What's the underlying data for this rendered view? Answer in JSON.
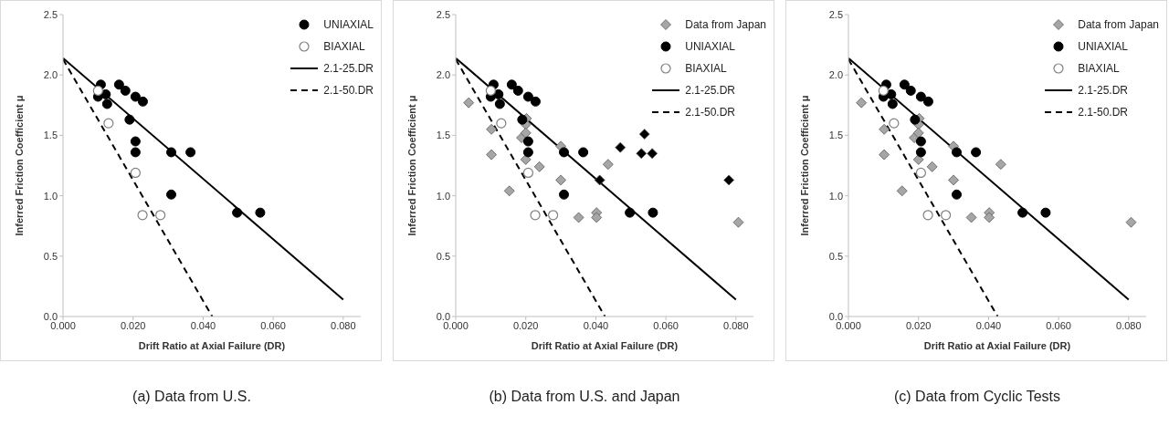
{
  "chart_data": [
    {
      "type": "scatter",
      "title": "(a) Data from U.S.",
      "xlabel": "Drift Ratio at Axial Failure (DR)",
      "ylabel": "Inferred Friction Coefficient μ",
      "xlim": [
        0,
        0.085
      ],
      "xticks": [
        {
          "value": 0,
          "label": "0.000"
        },
        {
          "value": 0.02,
          "label": "0.020"
        },
        {
          "value": 0.04,
          "label": "0.040"
        },
        {
          "value": 0.06,
          "label": "0.060"
        },
        {
          "value": 0.08,
          "label": "0.080"
        }
      ],
      "ylim": [
        0,
        2.5
      ],
      "yticks": [
        {
          "value": 0,
          "label": "0.0"
        },
        {
          "value": 0.5,
          "label": "0.5"
        },
        {
          "value": 1,
          "label": "1.0"
        },
        {
          "value": 1.5,
          "label": "1.5"
        },
        {
          "value": 2,
          "label": "2.0"
        },
        {
          "value": 2.5,
          "label": "2.5"
        }
      ],
      "grid": false,
      "legend": "top right",
      "series": [
        {
          "name": "UNIAXIAL",
          "color": "#000000",
          "marker": "circle",
          "x": [
            0.0108,
            0.01,
            0.0122,
            0.0126,
            0.016,
            0.0178,
            0.0207,
            0.0228,
            0.019,
            0.0207,
            0.0207,
            0.0309,
            0.0364,
            0.0309,
            0.0497,
            0.0563
          ],
          "values": [
            1.92,
            1.82,
            1.84,
            1.76,
            1.92,
            1.87,
            1.82,
            1.78,
            1.63,
            1.45,
            1.36,
            1.36,
            1.36,
            1.01,
            0.86,
            0.86
          ]
        },
        {
          "name": "BIAXIAL",
          "color": "#ffffff",
          "marker": "circle",
          "x": [
            0.01,
            0.013,
            0.0207,
            0.0227,
            0.0278
          ],
          "values": [
            1.87,
            1.6,
            1.19,
            0.84,
            0.84
          ]
        },
        {
          "name": "2.1-25.DR",
          "type": "line",
          "color": "#000000",
          "line_style": "solid",
          "x": [
            0,
            0.08
          ],
          "values": [
            2.14,
            0.14
          ]
        },
        {
          "name": "2.1-50.DR",
          "type": "line",
          "color": "#000000",
          "line_style": "dashed",
          "x": [
            0,
            0.0426
          ],
          "values": [
            2.13,
            0
          ]
        }
      ]
    },
    {
      "type": "scatter",
      "title": "(b) Data from U.S. and Japan",
      "xlabel": "Drift Ratio at Axial Failure (DR)",
      "ylabel": "Inferred Friction Coefficient μ",
      "xlim": [
        0,
        0.085
      ],
      "xticks": [
        {
          "value": 0,
          "label": "0.000"
        },
        {
          "value": 0.02,
          "label": "0.020"
        },
        {
          "value": 0.04,
          "label": "0.040"
        },
        {
          "value": 0.06,
          "label": "0.060"
        },
        {
          "value": 0.08,
          "label": "0.080"
        }
      ],
      "ylim": [
        0,
        2.5
      ],
      "yticks": [
        {
          "value": 0,
          "label": "0.0"
        },
        {
          "value": 0.5,
          "label": "0.5"
        },
        {
          "value": 1,
          "label": "1.0"
        },
        {
          "value": 1.5,
          "label": "1.5"
        },
        {
          "value": 2,
          "label": "2.0"
        },
        {
          "value": 2.5,
          "label": "2.5"
        }
      ],
      "grid": false,
      "legend": "top right",
      "series": [
        {
          "name": "Data from Japan",
          "color": "#a6a6a6",
          "marker": "diamond",
          "x": [
            0.0037,
            0.0102,
            0.0102,
            0.0153,
            0.0188,
            0.0202,
            0.02,
            0.02,
            0.02,
            0.0239,
            0.03,
            0.03,
            0.0351,
            0.0402,
            0.0402,
            0.0435,
            0.0807
          ],
          "values": [
            1.77,
            1.55,
            1.34,
            1.04,
            1.48,
            1.64,
            1.59,
            1.52,
            1.3,
            1.24,
            1.41,
            1.13,
            0.82,
            0.86,
            0.82,
            1.26,
            0.78
          ]
        },
        {
          "color": "#000000",
          "marker": "diamond",
          "x": [
            0.0411,
            0.047,
            0.053,
            0.0539,
            0.0561,
            0.078
          ],
          "values": [
            1.13,
            1.4,
            1.35,
            1.51,
            1.35,
            1.13
          ]
        },
        {
          "name": "UNIAXIAL",
          "color": "#000000",
          "marker": "circle",
          "x": [
            0.0108,
            0.01,
            0.0122,
            0.0126,
            0.016,
            0.0178,
            0.0207,
            0.0228,
            0.019,
            0.0207,
            0.0207,
            0.0309,
            0.0364,
            0.0309,
            0.0497,
            0.0563
          ],
          "values": [
            1.92,
            1.82,
            1.84,
            1.76,
            1.92,
            1.87,
            1.82,
            1.78,
            1.63,
            1.45,
            1.36,
            1.36,
            1.36,
            1.01,
            0.86,
            0.86
          ]
        },
        {
          "name": "BIAXIAL",
          "color": "#ffffff",
          "marker": "circle",
          "x": [
            0.01,
            0.013,
            0.0207,
            0.0227,
            0.0278
          ],
          "values": [
            1.87,
            1.6,
            1.19,
            0.84,
            0.84
          ]
        },
        {
          "name": "2.1-25.DR",
          "type": "line",
          "color": "#000000",
          "line_style": "solid",
          "x": [
            0,
            0.08
          ],
          "values": [
            2.14,
            0.14
          ]
        },
        {
          "name": "2.1-50.DR",
          "type": "line",
          "color": "#000000",
          "line_style": "dashed",
          "x": [
            0,
            0.0426
          ],
          "values": [
            2.13,
            0
          ]
        }
      ]
    },
    {
      "type": "scatter",
      "title": "(c) Data from Cyclic Tests",
      "xlabel": "Drift Ratio at Axial Failure (DR)",
      "ylabel": "Inferred Friction Coefficient μ",
      "xlim": [
        0,
        0.085
      ],
      "xticks": [
        {
          "value": 0,
          "label": "0.000"
        },
        {
          "value": 0.02,
          "label": "0.020"
        },
        {
          "value": 0.04,
          "label": "0.040"
        },
        {
          "value": 0.06,
          "label": "0.060"
        },
        {
          "value": 0.08,
          "label": "0.080"
        }
      ],
      "ylim": [
        0,
        2.5
      ],
      "yticks": [
        {
          "value": 0,
          "label": "0.0"
        },
        {
          "value": 0.5,
          "label": "0.5"
        },
        {
          "value": 1,
          "label": "1.0"
        },
        {
          "value": 1.5,
          "label": "1.5"
        },
        {
          "value": 2,
          "label": "2.0"
        },
        {
          "value": 2.5,
          "label": "2.5"
        }
      ],
      "grid": false,
      "legend": "top right",
      "series": [
        {
          "name": "Data from Japan",
          "color": "#a6a6a6",
          "marker": "diamond",
          "x": [
            0.0037,
            0.0102,
            0.0102,
            0.0153,
            0.0188,
            0.0202,
            0.02,
            0.02,
            0.02,
            0.0239,
            0.03,
            0.03,
            0.0351,
            0.0402,
            0.0402,
            0.0435,
            0.0807
          ],
          "values": [
            1.77,
            1.55,
            1.34,
            1.04,
            1.48,
            1.64,
            1.59,
            1.52,
            1.3,
            1.24,
            1.41,
            1.13,
            0.82,
            0.86,
            0.82,
            1.26,
            0.78
          ]
        },
        {
          "name": "UNIAXIAL",
          "color": "#000000",
          "marker": "circle",
          "x": [
            0.0108,
            0.01,
            0.0122,
            0.0126,
            0.016,
            0.0178,
            0.0207,
            0.0228,
            0.019,
            0.0207,
            0.0207,
            0.0309,
            0.0364,
            0.0309,
            0.0497,
            0.0563
          ],
          "values": [
            1.92,
            1.82,
            1.84,
            1.76,
            1.92,
            1.87,
            1.82,
            1.78,
            1.63,
            1.45,
            1.36,
            1.36,
            1.36,
            1.01,
            0.86,
            0.86
          ]
        },
        {
          "name": "BIAXIAL",
          "color": "#ffffff",
          "marker": "circle",
          "x": [
            0.01,
            0.013,
            0.0207,
            0.0227,
            0.0278
          ],
          "values": [
            1.87,
            1.6,
            1.19,
            0.84,
            0.84
          ]
        },
        {
          "name": "2.1-25.DR",
          "type": "line",
          "color": "#000000",
          "line_style": "solid",
          "x": [
            0,
            0.08
          ],
          "values": [
            2.14,
            0.14
          ]
        },
        {
          "name": "2.1-50.DR",
          "type": "line",
          "color": "#000000",
          "line_style": "dashed",
          "x": [
            0,
            0.0426
          ],
          "values": [
            2.13,
            0
          ]
        }
      ]
    }
  ]
}
